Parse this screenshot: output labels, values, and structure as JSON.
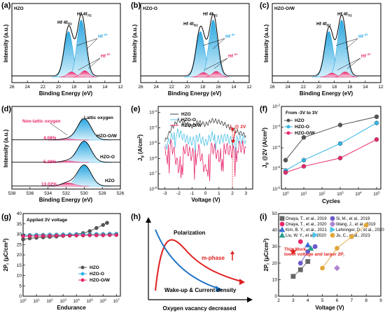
{
  "chart_data": [
    {
      "type": "line",
      "panel": "(a)",
      "tag": "HZO",
      "peak_labels": [
        "Hf 4f5/2",
        "Hf 4f7/2"
      ],
      "component_labels": [
        "Hf 4+",
        "Hf 3+"
      ],
      "xlabel": "Binding Energy (eV)",
      "ylabel": "Intensity (a.u.)",
      "xticks": [
        "26",
        "24",
        "22",
        "20",
        "18",
        "16",
        "14",
        "12"
      ],
      "xlim": [
        26,
        12
      ],
      "peaks": [
        {
          "center": 18.7,
          "height": 0.8,
          "width": 0.55
        },
        {
          "center": 17.05,
          "height": 1.0,
          "width": 0.55
        },
        {
          "center": 18.3,
          "height": 0.09,
          "width": 0.5,
          "component": "Hf 3+"
        },
        {
          "center": 16.6,
          "height": 0.11,
          "width": 0.5,
          "component": "Hf 3+"
        }
      ]
    },
    {
      "type": "line",
      "panel": "(b)",
      "tag": "HZO-O",
      "peak_labels": [
        "Hf 4f5/2",
        "Hf 4f7/2"
      ],
      "component_labels": [
        "Hf 4+",
        "Hf 3+"
      ],
      "xlabel": "Binding Energy (eV)",
      "ylabel": "Intensity (a.u.)",
      "xticks": [
        "26",
        "24",
        "22",
        "20",
        "18",
        "16",
        "14",
        "12"
      ],
      "xlim": [
        26,
        12
      ],
      "peaks": [
        {
          "center": 18.3,
          "height": 0.8,
          "width": 0.55
        },
        {
          "center": 16.65,
          "height": 1.0,
          "width": 0.55
        },
        {
          "center": 17.9,
          "height": 0.08,
          "width": 0.5,
          "component": "Hf 3+"
        },
        {
          "center": 16.25,
          "height": 0.1,
          "width": 0.5,
          "component": "Hf 3+"
        }
      ]
    },
    {
      "type": "line",
      "panel": "(c)",
      "tag": "HZO-O/W",
      "peak_labels": [
        "Hf 4f5/2",
        "Hf 4f7/2"
      ],
      "component_labels": [
        "Hf 4+",
        "Hf 3+"
      ],
      "xlabel": "Binding Energy (eV)",
      "ylabel": "Intensity (a.u.)",
      "xticks": [
        "26",
        "24",
        "22",
        "20",
        "18",
        "16",
        "14",
        "12"
      ],
      "xlim": [
        26,
        12
      ],
      "peaks": [
        {
          "center": 18.7,
          "height": 0.8,
          "width": 0.55
        },
        {
          "center": 17.05,
          "height": 1.0,
          "width": 0.55
        },
        {
          "center": 18.3,
          "height": 0.07,
          "width": 0.5,
          "component": "Hf 3+"
        },
        {
          "center": 16.6,
          "height": 0.09,
          "width": 0.5,
          "component": "Hf 3+"
        }
      ]
    },
    {
      "type": "line",
      "panel": "(d)",
      "annotations": [
        "Non-lattic oxygen",
        "Lattic oxygen"
      ],
      "series": [
        {
          "name": "HZO-O/W",
          "non_lattice_percent": "4.08%"
        },
        {
          "name": "HZO-O",
          "non_lattice_percent": "5.28%"
        },
        {
          "name": "HZO",
          "non_lattice_percent": "13.02%"
        }
      ],
      "xlabel": "Binding Energy (eV)",
      "ylabel": "Intensity (a.u.)",
      "xticks": [
        "538",
        "536",
        "534",
        "532",
        "530",
        "528",
        "526"
      ],
      "xlim": [
        538,
        526
      ],
      "lattice_peak_center": 530.0,
      "non_lattice_peak_center": 531.8
    },
    {
      "type": "line",
      "panel": "(e)",
      "legend": [
        "HZO",
        "HZO-O",
        "HZO-O/W"
      ],
      "annotation": "J",
      "annotation_sub": "g",
      "annotation_rest": " @ 2V",
      "xlabel": "Voltage (V)",
      "ylabel": "J",
      "ylabel_sub": "g",
      "ylabel_rest": " (A/cm",
      "yticks": [
        {
          "base": "10",
          "exp": "-3"
        },
        {
          "base": "10",
          "exp": "-4"
        },
        {
          "base": "10",
          "exp": "-5"
        },
        {
          "base": "10",
          "exp": "-6"
        },
        {
          "base": "10",
          "exp": "-7"
        },
        {
          "base": "10",
          "exp": "-8"
        }
      ],
      "xticks": [
        "-3",
        "-2",
        "-1",
        "0",
        "1",
        "2",
        "3"
      ],
      "xlim": [
        -3.5,
        3.5
      ],
      "ylim_log10": [
        -8,
        -2.6
      ],
      "series": [
        {
          "name": "HZO",
          "x": [
            -3,
            -2.5,
            -2,
            -1.5,
            -1,
            -0.5,
            0,
            0.5,
            1,
            1.5,
            2,
            2.5,
            3
          ],
          "log10y": [
            -4.9,
            -4.0,
            -3.5,
            -3.7,
            -3.9,
            -3.6,
            -3.8,
            -3.5,
            -3.6,
            -3.8,
            -4.1,
            -4.3,
            -4.5
          ]
        },
        {
          "name": "HZO-O",
          "x": [
            -3,
            -2.5,
            -2,
            -1.5,
            -1,
            -0.5,
            0,
            0.5,
            1,
            1.5,
            2,
            2.5,
            3
          ],
          "log10y": [
            -5.3,
            -4.6,
            -4.3,
            -4.7,
            -4.9,
            -4.6,
            -5.0,
            -4.5,
            -4.8,
            -4.6,
            -4.9,
            -4.7,
            -4.8
          ]
        },
        {
          "name": "HZO-O/W",
          "x": [
            -3,
            -2.5,
            -2,
            -1.5,
            -1,
            -0.5,
            0,
            0.5,
            1,
            1.5,
            2,
            2.5,
            3
          ],
          "log10y": [
            -5.6,
            -5.1,
            -6.6,
            -5.3,
            -5.8,
            -5.4,
            -6.8,
            -5.2,
            -5.9,
            -5.3,
            -5.6,
            -5.2,
            -5.3
          ]
        }
      ]
    },
    {
      "type": "line",
      "panel": "(f)",
      "annotation": "From -3V to 3V",
      "legend": [
        "HZO",
        "HZO-O",
        "HZO-O/W"
      ],
      "xlabel": "Cycles",
      "ylabel": "J",
      "ylabel_sub": "g",
      "ylabel_rest": " @2V (A/cm",
      "xticks": [
        {
          "base": "10",
          "exp": "0"
        },
        {
          "base": "10",
          "exp": "1"
        },
        {
          "base": "10",
          "exp": "2"
        },
        {
          "base": "10",
          "exp": "3"
        },
        {
          "base": "10",
          "exp": "4"
        },
        {
          "base": "10",
          "exp": "5"
        }
      ],
      "yticks": [
        {
          "base": "10",
          "exp": "-2"
        },
        {
          "base": "10",
          "exp": "-3"
        },
        {
          "base": "10",
          "exp": "-4"
        },
        {
          "base": "10",
          "exp": "-5"
        },
        {
          "base": "10",
          "exp": "-6"
        }
      ],
      "xlim_log10": [
        0,
        5
      ],
      "ylim_log10": [
        -6,
        -2
      ],
      "series": [
        {
          "name": "HZO",
          "x_log10": [
            0,
            1,
            3,
            5
          ],
          "log10y": [
            -4.6,
            -3.5,
            -2.9,
            -2.5
          ],
          "color": "#555555"
        },
        {
          "name": "HZO-O",
          "x_log10": [
            0,
            1,
            3,
            5
          ],
          "log10y": [
            -5.1,
            -4.6,
            -3.8,
            -2.8
          ],
          "color": "#33b5e5"
        },
        {
          "name": "HZO-O/W",
          "x_log10": [
            0,
            1,
            3,
            5
          ],
          "log10y": [
            -5.2,
            -4.9,
            -4.5,
            -3.6
          ],
          "color": "#e8286e"
        }
      ]
    },
    {
      "type": "line",
      "panel": "(g)",
      "annotation": "Applied 3V voltage",
      "legend": [
        "HZO",
        "HZO-O",
        "HZO-O/W"
      ],
      "xlabel": "Endurance",
      "ylabel": "2P",
      "ylabel_sub": "r",
      "ylabel_rest": " (μC/cm",
      "yticks": [
        "0",
        "5",
        "10",
        "15",
        "20",
        "25",
        "30",
        "35",
        "40"
      ],
      "xticks": [
        {
          "base": "10",
          "exp": "0"
        },
        {
          "base": "10",
          "exp": "1"
        },
        {
          "base": "10",
          "exp": "2"
        },
        {
          "base": "10",
          "exp": "3"
        },
        {
          "base": "10",
          "exp": "4"
        },
        {
          "base": "10",
          "exp": "5"
        },
        {
          "base": "10",
          "exp": "6"
        },
        {
          "base": "10",
          "exp": "7"
        }
      ],
      "ylim": [
        0,
        40
      ],
      "xlim_log10": [
        0,
        7.3
      ],
      "series": [
        {
          "name": "HZO",
          "x_log10": [
            0,
            0.5,
            1,
            1.5,
            2,
            2.5,
            3,
            3.5,
            4,
            4.5,
            5,
            5.5,
            6,
            6.3
          ],
          "values": [
            27.5,
            28,
            28.3,
            28.5,
            28.7,
            28.9,
            29.2,
            29.6,
            30,
            30.5,
            31.5,
            33,
            34.5,
            35.5
          ],
          "color": "#555555"
        },
        {
          "name": "HZO-O",
          "x_log10": [
            0,
            0.5,
            1,
            1.5,
            2,
            2.5,
            3,
            3.5,
            4,
            4.5,
            5,
            5.5,
            6,
            6.5,
            7
          ],
          "values": [
            29.5,
            29.6,
            29.7,
            29.7,
            29.8,
            29.8,
            29.9,
            29.9,
            30,
            30,
            30,
            30.1,
            30.1,
            30.2,
            30.2
          ],
          "color": "#33b5e5"
        },
        {
          "name": "HZO-O/W",
          "x_log10": [
            0,
            0.5,
            1,
            1.5,
            2,
            2.5,
            3,
            3.5,
            4,
            4.5,
            5,
            5.5,
            6,
            6.5,
            7
          ],
          "values": [
            29,
            29.1,
            29.1,
            29.2,
            29.2,
            29.3,
            29.3,
            29.3,
            29.4,
            29.4,
            29.5,
            29.5,
            29.5,
            29.6,
            29.6
          ],
          "color": "#e8286e"
        }
      ]
    },
    {
      "type": "diagram",
      "panel": "(h)",
      "labels": [
        "Polarization",
        "m-phase",
        "Wake-up & Current density"
      ],
      "xlabel": "Oxygen vacancy decreased"
    },
    {
      "type": "scatter",
      "panel": "(i)",
      "xlabel": "Voltage (V)",
      "ylabel": "2P",
      "ylabel_sub": "r",
      "ylabel_rest": " (μC/cm",
      "annotation": "This Work lower voltage and larger 2P",
      "annotation_sub": "r",
      "xticks": [
        "2",
        "3",
        "4",
        "5",
        "6",
        "7",
        "8",
        "9"
      ],
      "yticks": [
        "0",
        "10",
        "20",
        "30",
        "40",
        "50"
      ],
      "xlim": [
        2,
        9
      ],
      "ylim": [
        0,
        50
      ],
      "legend": [
        "Onaya, T., et al., 2019",
        "Si, M., et al., 2019",
        "Onaya, T., et al., 2020",
        "Wang, J., et al., 2019",
        "Kim, B. Y., et al., 2021",
        "Lehninger, D., et al., 2020",
        "Liu, W. Y., et al., 2020",
        "Ju, C., et al., 2023"
      ],
      "series": [
        {
          "name": "Onaya, T., et al., 2019",
          "x": [
            3,
            3.5,
            4
          ],
          "values": [
            12,
            16,
            21
          ],
          "color": "#666666",
          "marker": "square"
        },
        {
          "name": "Si, M., et al., 2019",
          "x": [
            3.5,
            4,
            4.5
          ],
          "values": [
            20,
            27,
            30
          ],
          "color": "#6a5acd",
          "marker": "circle"
        },
        {
          "name": "Onaya, T., et al., 2020",
          "x": [
            3.5
          ],
          "values": [
            33
          ],
          "color": "#e8286e",
          "marker": "circle"
        },
        {
          "name": "Wang, J., et al., 2019",
          "x": [
            6
          ],
          "values": [
            17
          ],
          "color": "#b085d0",
          "marker": "diamond"
        },
        {
          "name": "Kim, B. Y., et al., 2021",
          "x": [
            4
          ],
          "values": [
            31
          ],
          "color": "#3a6fd8",
          "marker": "triangle"
        },
        {
          "name": "Lehninger, D., et al., 2020",
          "x": [
            4.5
          ],
          "values": [
            37
          ],
          "color": "#4fc3e8",
          "marker": "triangle-right"
        },
        {
          "name": "Liu, W. Y., et al., 2020",
          "x": [
            4.2
          ],
          "values": [
            29
          ],
          "color": "#2a9d8f",
          "marker": "triangle"
        },
        {
          "name": "Ju, C., et al., 2023",
          "x": [
            5,
            6,
            7,
            8
          ],
          "values": [
            17,
            29,
            36,
            43
          ],
          "color": "#e1a73a",
          "marker": "circle"
        },
        {
          "name": "This Work",
          "x": [
            3
          ],
          "values": [
            27
          ],
          "color": "#e02020",
          "marker": "star"
        }
      ]
    }
  ]
}
